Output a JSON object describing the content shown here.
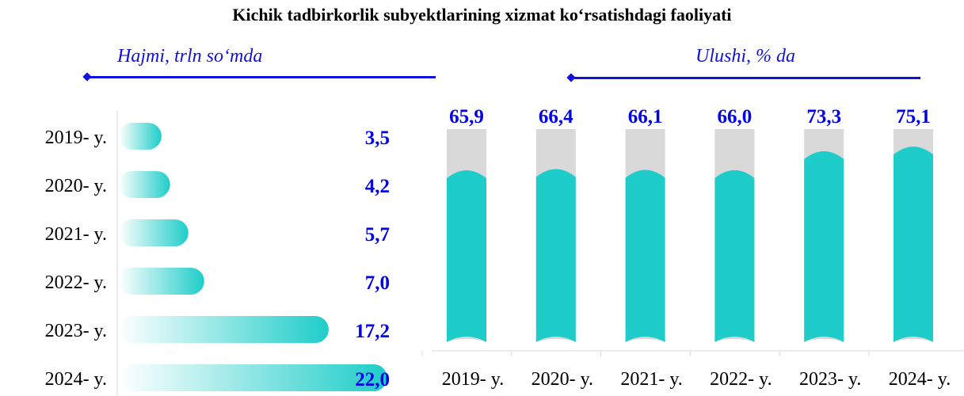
{
  "title": "Kichik tadbirkorlik subyektlarining xizmat ko‘rsatishdagi faoliyati",
  "colors": {
    "teal": "#1ecdc9",
    "gray": "#d9d9d9",
    "label_blue": "#0000ee"
  },
  "chart_data": [
    {
      "type": "bar",
      "orientation": "horizontal",
      "title": "Hajmi, trln so‘mda",
      "categories": [
        "2019- y.",
        "2020- y.",
        "2021- y.",
        "2022- y.",
        "2023- y.",
        "2024- y."
      ],
      "values": [
        3.5,
        4.2,
        5.7,
        7.0,
        17.2,
        22.0
      ],
      "labels": [
        "3,5",
        "4,2",
        "5,7",
        "7,0",
        "17,2",
        "22,0"
      ]
    },
    {
      "type": "bar",
      "orientation": "vertical",
      "title": "Ulushi, % da",
      "categories": [
        "2019- y.",
        "2020- y.",
        "2021- y.",
        "2022- y.",
        "2023- y.",
        "2024- y."
      ],
      "values": [
        65.9,
        66.4,
        66.1,
        66.0,
        73.3,
        75.1
      ],
      "labels": [
        "65,9",
        "66,4",
        "66,1",
        "66,0",
        "73,3",
        "75,1"
      ]
    }
  ]
}
